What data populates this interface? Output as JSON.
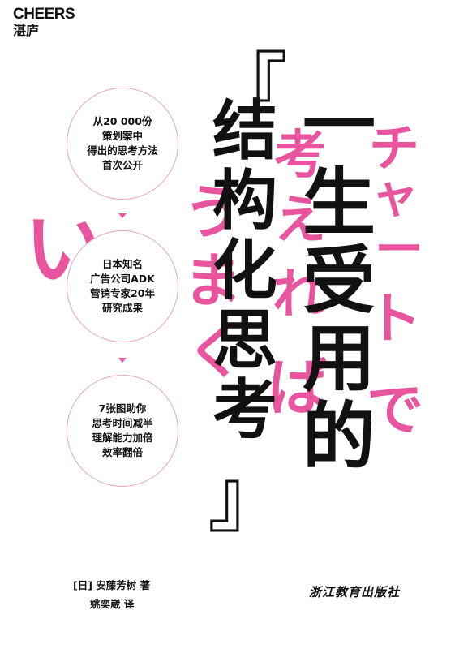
{
  "brand": {
    "name_en": "CHEERS",
    "name_cn": "湛庐"
  },
  "japanese_title": {
    "col1": [
      "チ",
      "ャ",
      "ー",
      "ト",
      "で"
    ],
    "col2": [
      "考",
      "え",
      "れ",
      "ば"
    ],
    "col3": [
      "う",
      "ま",
      "く"
    ],
    "col4": "い"
  },
  "title": {
    "open_bracket": "『",
    "col_left": [
      "结",
      "构",
      "化",
      "思",
      "考"
    ],
    "col_right": [
      "一",
      "生",
      "受",
      "用",
      "的"
    ],
    "close_bracket": "』"
  },
  "features": [
    {
      "lines": [
        "从20 000份",
        "策划案中",
        "得出的思考方法",
        "首次公开"
      ]
    },
    {
      "lines": [
        "日本知名",
        "广告公司ADK",
        "营销专家20年",
        "研究成果"
      ]
    },
    {
      "lines": [
        "7张图助你",
        "思考时间减半",
        "理解能力加倍",
        "效率翻倍"
      ]
    }
  ],
  "author": "[日] 安藤芳树  著",
  "translator": "姚奕崴  译",
  "publisher": "浙江教育出版社",
  "colors": {
    "accent": "#e8559e",
    "circle_border": "#e4a2c4",
    "text": "#111111",
    "background": "#ffffff"
  }
}
